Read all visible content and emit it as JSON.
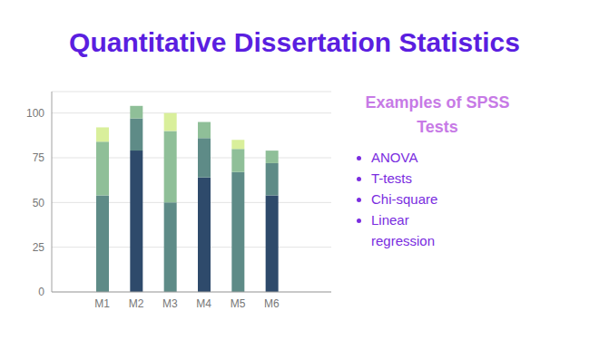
{
  "chart_data": {
    "type": "bar",
    "title": "Quantitative Dissertation Statistics",
    "categories": [
      "M1",
      "M2",
      "M3",
      "M4",
      "M5",
      "M6"
    ],
    "stacked": true,
    "grid": true,
    "ylim": [
      0,
      112
    ],
    "yticks": [
      0,
      25,
      50,
      75,
      100
    ],
    "series": [
      {
        "color": "#2e4a6b",
        "values": [
          0,
          79,
          0,
          64,
          0,
          54
        ]
      },
      {
        "color": "#5e8b87",
        "values": [
          54,
          18,
          50,
          22,
          67,
          18
        ]
      },
      {
        "color": "#8fbf98",
        "values": [
          30,
          7,
          40,
          9,
          13,
          7
        ]
      },
      {
        "color": "#d9ef9b",
        "values": [
          8,
          0,
          10,
          0,
          5,
          0
        ]
      }
    ]
  },
  "side_panel": {
    "heading": "Examples of SPSS Tests",
    "items": [
      "ANOVA",
      "T-tests",
      "Chi-square",
      "Linear regression"
    ]
  }
}
